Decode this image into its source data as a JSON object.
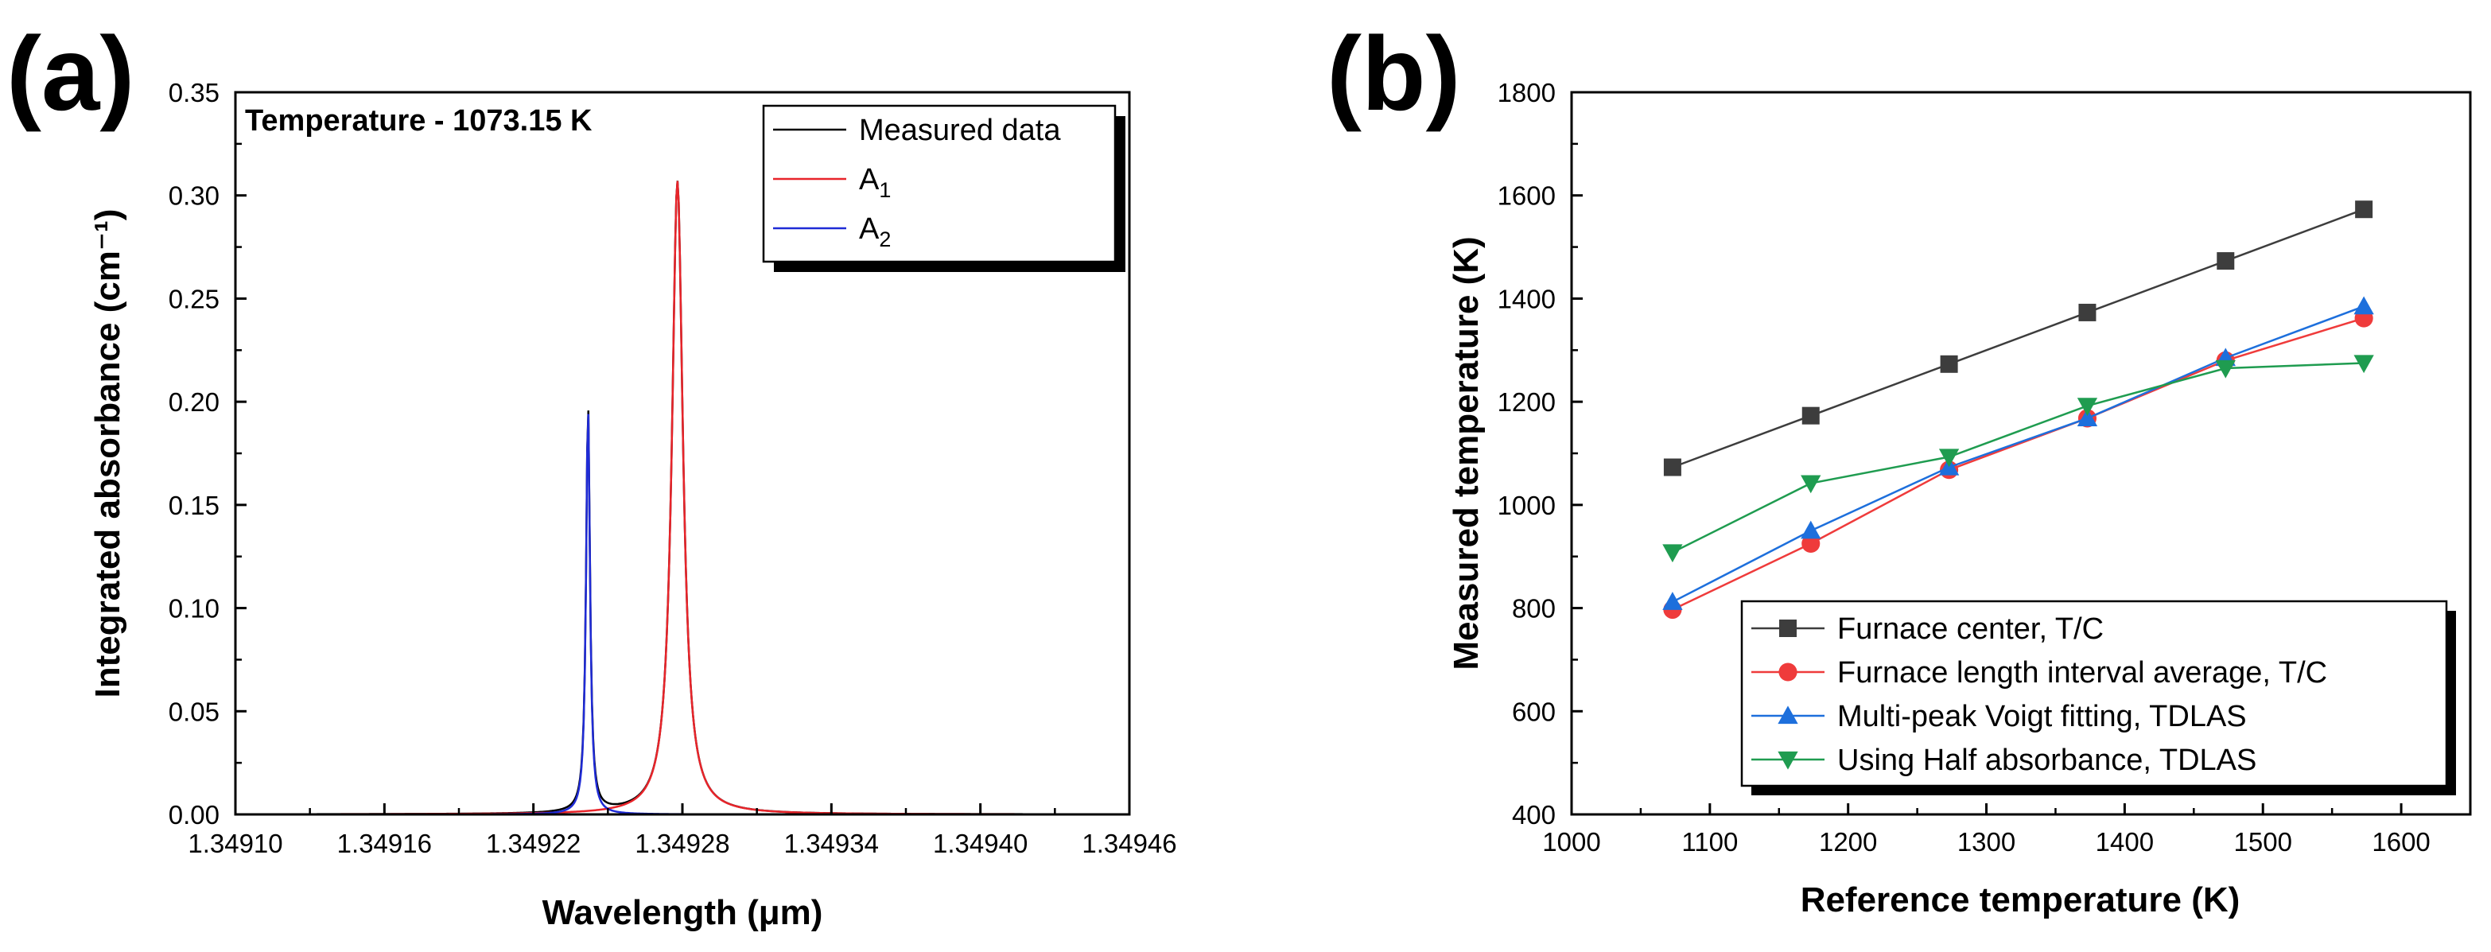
{
  "panels": {
    "a": {
      "label": "(a)"
    },
    "b": {
      "label": "(b)"
    }
  },
  "colors": {
    "black": "#000000",
    "red": "#e8242a",
    "blue": "#1f2bd6",
    "series_black": "#3d3d3d",
    "series_red": "#ef3b3b",
    "series_blue": "#1d6fdc",
    "series_green": "#1f9c50"
  },
  "chart_data": [
    {
      "id": "a",
      "type": "line",
      "title": "",
      "annotation": "Temperature - 1073.15 K",
      "xlabel": "Wavelength (μm)",
      "ylabel": "Integrated absorbance (cm⁻¹)",
      "xlim": [
        1.3491,
        1.34946
      ],
      "ylim": [
        0,
        0.35
      ],
      "xticks": [
        1.3491,
        1.34916,
        1.34922,
        1.34928,
        1.34934,
        1.3494,
        1.34946
      ],
      "xtick_labels": [
        "1.34910",
        "1.34916",
        "1.34922",
        "1.34928",
        "1.34934",
        "1.34940",
        "1.34946"
      ],
      "yticks": [
        0,
        0.05,
        0.1,
        0.15,
        0.2,
        0.25,
        0.3,
        0.35
      ],
      "ytick_labels": [
        "0.00",
        "0.05",
        "0.10",
        "0.15",
        "0.20",
        "0.25",
        "0.30",
        "0.35"
      ],
      "x_range_data": [
        1.3491,
        1.349435
      ],
      "peaks": {
        "A1": {
          "center": 1.349278,
          "height": 0.307,
          "hwhm": 2.7e-06
        },
        "A2": {
          "center": 1.349242,
          "height": 0.198,
          "hwhm": 9.5e-07
        }
      },
      "legend_position": "top-right",
      "legend": [
        {
          "name": "Measured data",
          "sub": "",
          "color": "#000000"
        },
        {
          "name": "A",
          "sub": "1",
          "color": "#e8242a"
        },
        {
          "name": "A",
          "sub": "2",
          "color": "#1f2bd6"
        }
      ]
    },
    {
      "id": "b",
      "type": "line",
      "title": "",
      "xlabel": "Reference temperature (K)",
      "ylabel": "Measured temperature (K)",
      "xlim": [
        1000,
        1650
      ],
      "ylim": [
        400,
        1800
      ],
      "xticks": [
        1000,
        1100,
        1200,
        1300,
        1400,
        1500,
        1600
      ],
      "yticks": [
        400,
        600,
        800,
        1000,
        1200,
        1400,
        1600,
        1800
      ],
      "x": [
        1073,
        1173,
        1273,
        1373,
        1473,
        1573
      ],
      "legend_position": "bottom-right",
      "series": [
        {
          "name": "Furnace center, T/C",
          "marker": "square",
          "color": "#3d3d3d",
          "values": [
            1073,
            1173,
            1273,
            1373,
            1473,
            1573
          ]
        },
        {
          "name": "Furnace length interval average, T/C",
          "marker": "circle",
          "color": "#ef3b3b",
          "values": [
            797,
            925,
            1068,
            1168,
            1280,
            1362
          ]
        },
        {
          "name": "Multi-peak Voigt fitting, TDLAS",
          "marker": "triangle-up",
          "color": "#1d6fdc",
          "values": [
            812,
            950,
            1073,
            1168,
            1285,
            1385
          ]
        },
        {
          "name": "Using Half absorbance, TDLAS",
          "marker": "triangle-down",
          "color": "#1f9c50",
          "values": [
            908,
            1042,
            1093,
            1192,
            1265,
            1275
          ]
        }
      ]
    }
  ]
}
